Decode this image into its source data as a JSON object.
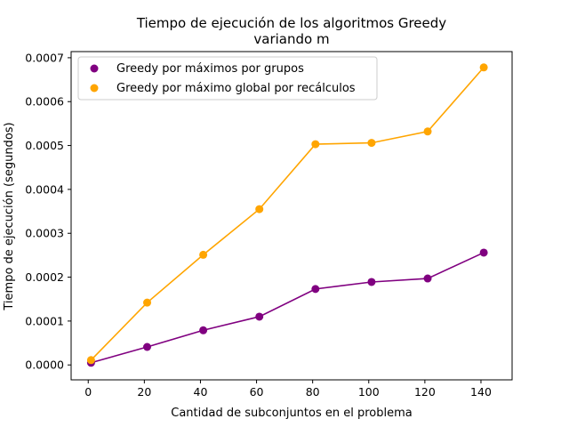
{
  "chart_data": {
    "type": "line",
    "title_line1": "Tiempo de ejecución de los algoritmos Greedy",
    "title_line2": "variando m",
    "xlabel": "Cantidad de subconjuntos en el problema",
    "ylabel": "Tiempo de ejecución (segundos)",
    "xlim": [
      -6.1,
      151.1
    ],
    "ylim": [
      -3.4e-05,
      0.000714
    ],
    "x_ticks": [
      0,
      20,
      40,
      60,
      80,
      100,
      120,
      140
    ],
    "x_tick_labels": [
      "0",
      "20",
      "40",
      "60",
      "80",
      "100",
      "120",
      "140"
    ],
    "y_ticks": [
      0.0,
      0.0001,
      0.0002,
      0.0003,
      0.0004,
      0.0005,
      0.0006,
      0.0007
    ],
    "y_tick_labels": [
      "0.0000",
      "0.0001",
      "0.0002",
      "0.0003",
      "0.0004",
      "0.0005",
      "0.0006",
      "0.0007"
    ],
    "legend_position": "top-left",
    "x": [
      1,
      21,
      41,
      61,
      81,
      101,
      121,
      141
    ],
    "series": [
      {
        "name": "Greedy por máximos por grupos",
        "color": "#800080",
        "values": [
          5e-06,
          4.1e-05,
          7.9e-05,
          0.00011,
          0.000173,
          0.000189,
          0.000197,
          0.000256
        ]
      },
      {
        "name": "Greedy por máximo global por recálculos",
        "color": "#FFA500",
        "values": [
          1.1e-05,
          0.000142,
          0.000251,
          0.000355,
          0.000503,
          0.000506,
          0.000532,
          0.000678
        ]
      }
    ]
  }
}
